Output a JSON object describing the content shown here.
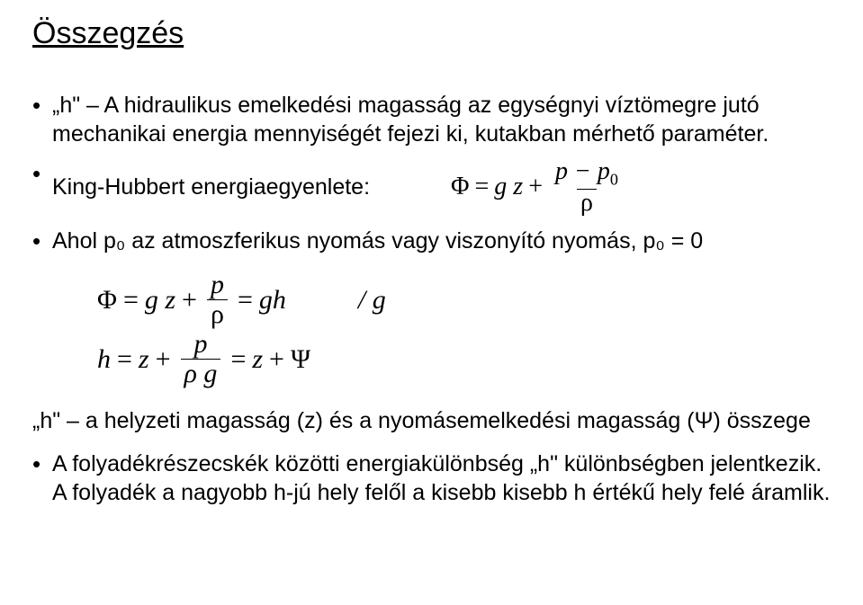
{
  "title": "Összegzés",
  "bullet1": "„h\" – A hidraulikus emelkedési magasság az egységnyi víztömegre jutó mechanikai energia mennyiségét fejezi ki, kutakban mérhető paraméter.",
  "bullet2_label": "King-Hubbert energiaegyenlete:",
  "bullet3": "Ahol p₀ az atmoszferikus nyomás vagy viszonyító nyomás, p₀ = 0",
  "eq_inline": {
    "phi": "Φ",
    "eq": "=",
    "gz": "g z",
    "plus": "+",
    "num": "p − p",
    "num_sub": "0",
    "den": "ρ"
  },
  "eq_block1": {
    "phi": "Φ",
    "eq": "=",
    "gz": "g z",
    "plus": "+",
    "frac_num": "p",
    "frac_den": "ρ",
    "eq2": "=",
    "gh": "gh",
    "slashg": "/ g"
  },
  "eq_block2": {
    "h": "h",
    "eq": "=",
    "z": "z",
    "plus": "+",
    "frac_num": "p",
    "frac_den": "ρ g",
    "eq2": "=",
    "z2": "z",
    "plus2": "+",
    "psi": "Ψ"
  },
  "text_h": "„h\" – a helyzeti magasság (z) és a nyomásemelkedési magasság (Ψ) összege",
  "bullet4": "A folyadékrészecskék közötti energiakülönbség „h\" különbségben jelentkezik. A folyadék a nagyobb h-jú hely felől a kisebb kisebb h értékű hely felé áramlik."
}
